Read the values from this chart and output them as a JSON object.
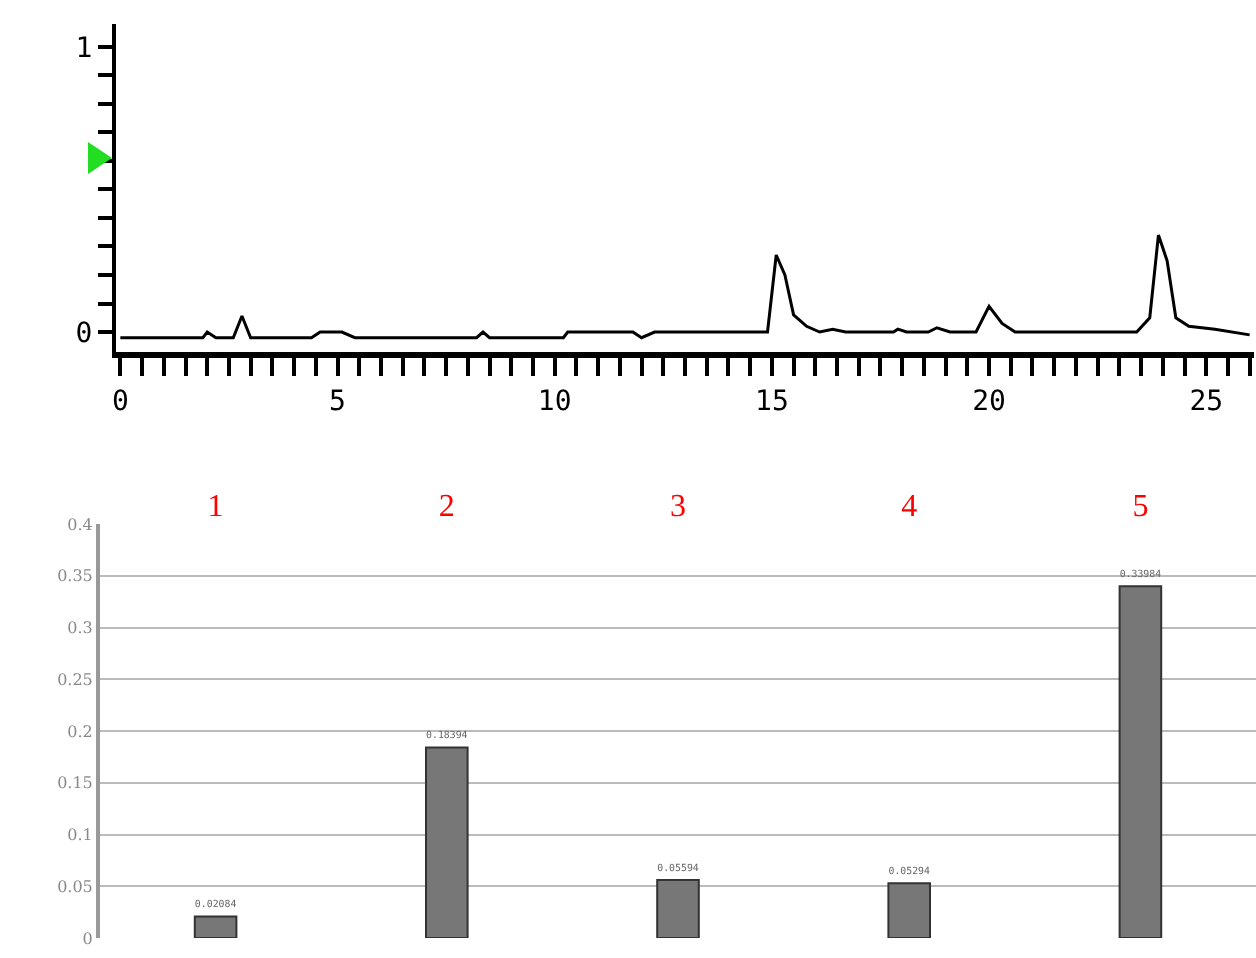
{
  "chart_data": [
    {
      "type": "line",
      "xlim": [
        -0.1,
        26.1
      ],
      "ylim": [
        -0.07,
        1.08
      ],
      "xticks": [
        0,
        {
          "value": 0.5,
          "label": null
        },
        {
          "value": 1,
          "label": null
        },
        {
          "value": 1.5,
          "label": null
        },
        {
          "value": 2,
          "label": null
        },
        {
          "value": 2.5,
          "label": null
        },
        {
          "value": 3,
          "label": null
        },
        {
          "value": 3.5,
          "label": null
        },
        {
          "value": 4,
          "label": null
        },
        {
          "value": 4.5,
          "label": null
        },
        5,
        {
          "value": 5.5,
          "label": null
        },
        {
          "value": 6,
          "label": null
        },
        {
          "value": 6.5,
          "label": null
        },
        {
          "value": 7,
          "label": null
        },
        {
          "value": 7.5,
          "label": null
        },
        {
          "value": 8,
          "label": null
        },
        {
          "value": 8.5,
          "label": null
        },
        {
          "value": 9,
          "label": null
        },
        {
          "value": 9.5,
          "label": null
        },
        10,
        {
          "value": 10.5,
          "label": null
        },
        {
          "value": 11,
          "label": null
        },
        {
          "value": 11.5,
          "label": null
        },
        {
          "value": 12,
          "label": null
        },
        {
          "value": 12.5,
          "label": null
        },
        {
          "value": 13,
          "label": null
        },
        {
          "value": 13.5,
          "label": null
        },
        {
          "value": 14,
          "label": null
        },
        {
          "value": 14.5,
          "label": null
        },
        15,
        {
          "value": 15.5,
          "label": null
        },
        {
          "value": 16,
          "label": null
        },
        {
          "value": 16.5,
          "label": null
        },
        {
          "value": 17,
          "label": null
        },
        {
          "value": 17.5,
          "label": null
        },
        {
          "value": 18,
          "label": null
        },
        {
          "value": 18.5,
          "label": null
        },
        {
          "value": 19,
          "label": null
        },
        {
          "value": 19.5,
          "label": null
        },
        20,
        {
          "value": 20.5,
          "label": null
        },
        {
          "value": 21,
          "label": null
        },
        {
          "value": 21.5,
          "label": null
        },
        {
          "value": 22,
          "label": null
        },
        {
          "value": 22.5,
          "label": null
        },
        {
          "value": 23,
          "label": null
        },
        {
          "value": 23.5,
          "label": null
        },
        {
          "value": 24,
          "label": null
        },
        {
          "value": 24.5,
          "label": null
        },
        25,
        {
          "value": 25.5,
          "label": null
        },
        {
          "value": 26,
          "label": null
        }
      ],
      "yticks": [
        0,
        {
          "value": 0.1,
          "label": null
        },
        {
          "value": 0.2,
          "label": null
        },
        {
          "value": 0.3,
          "label": null
        },
        {
          "value": 0.4,
          "label": null
        },
        {
          "value": 0.5,
          "label": null
        },
        {
          "value": 0.6,
          "label": null
        },
        {
          "value": 0.7,
          "label": null
        },
        {
          "value": 0.8,
          "label": null
        },
        {
          "value": 0.9,
          "label": null
        },
        1
      ],
      "marker": "none",
      "line_style": "solid",
      "grid": false,
      "series": [
        {
          "color": "#000000",
          "x": [
            0,
            1.9,
            2.0,
            2.2,
            2.6,
            2.8,
            3.0,
            4.4,
            4.6,
            5.1,
            5.4,
            8.2,
            8.35,
            8.5,
            10.2,
            10.3,
            11.8,
            12.0,
            12.3,
            14.9,
            15.1,
            15.3,
            15.5,
            15.8,
            16.1,
            16.4,
            16.7,
            17.8,
            17.9,
            18.1,
            18.6,
            18.8,
            19.1,
            19.7,
            20.0,
            20.3,
            20.6,
            23.4,
            23.7,
            23.9,
            24.1,
            24.3,
            24.6,
            25.2,
            26.0
          ],
          "values": [
            -0.02,
            -0.02,
            0.0,
            -0.02,
            -0.02,
            0.056,
            -0.02,
            -0.02,
            0.0,
            0.0,
            -0.02,
            -0.02,
            0.0,
            -0.02,
            -0.02,
            0.0,
            0.0,
            -0.02,
            0.0,
            0.0,
            0.27,
            0.2,
            0.06,
            0.02,
            0.0,
            0.01,
            0.0,
            0.0,
            0.01,
            0.0,
            0.0,
            0.015,
            0.0,
            0.0,
            0.09,
            0.03,
            0.0,
            0.0,
            0.05,
            0.34,
            0.25,
            0.05,
            0.02,
            0.01,
            -0.01
          ]
        }
      ]
    },
    {
      "type": "bar",
      "categories": [
        "1",
        "2",
        "3",
        "4",
        "5"
      ],
      "values": [
        0.02084,
        0.18394,
        0.05594,
        0.05294,
        0.33984
      ],
      "value_labels": [
        "0.02084",
        "0.18394",
        "0.05594",
        "0.05294",
        "0.33984"
      ],
      "color": "#777777",
      "ylim": [
        0,
        0.4
      ],
      "yticks": [
        0,
        0.05,
        0.1,
        0.15,
        0.2,
        0.25,
        0.3,
        0.35,
        0.4
      ],
      "grid": "y"
    }
  ]
}
